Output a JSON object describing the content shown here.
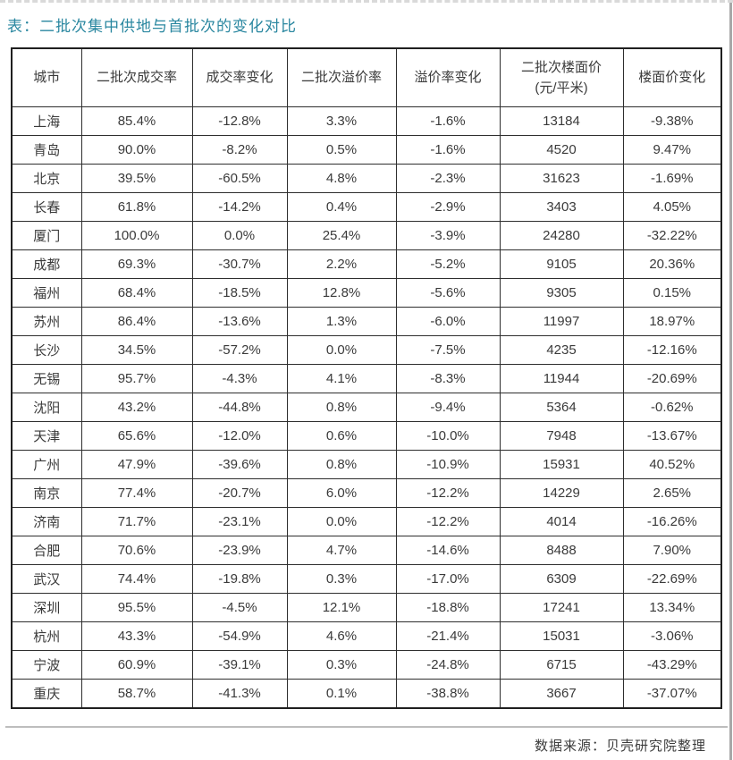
{
  "page": {
    "title": "表：二批次集中供地与首批次的变化对比",
    "source_note": "数据来源：贝壳研究院整理"
  },
  "colors": {
    "title_teal": "#2a87a0",
    "cell_text": "#3a3a3a",
    "table_border": "#2e2e2e",
    "divider_gray": "#bdbdbd"
  },
  "chart_data": {
    "type": "table",
    "title": "表：二批次集中供地与首批次的变化对比",
    "columns": [
      {
        "label": "城市",
        "sub": ""
      },
      {
        "label": "二批次成交率",
        "sub": ""
      },
      {
        "label": "成交率变化",
        "sub": ""
      },
      {
        "label": "二批次溢价率",
        "sub": ""
      },
      {
        "label": "溢价率变化",
        "sub": ""
      },
      {
        "label": "二批次楼面价",
        "sub": "(元/平米)"
      },
      {
        "label": "楼面价变化",
        "sub": ""
      }
    ],
    "rows": [
      [
        "上海",
        "85.4%",
        "-12.8%",
        "3.3%",
        "-1.6%",
        "13184",
        "-9.38%"
      ],
      [
        "青岛",
        "90.0%",
        "-8.2%",
        "0.5%",
        "-1.6%",
        "4520",
        "9.47%"
      ],
      [
        "北京",
        "39.5%",
        "-60.5%",
        "4.8%",
        "-2.3%",
        "31623",
        "-1.69%"
      ],
      [
        "长春",
        "61.8%",
        "-14.2%",
        "0.4%",
        "-2.9%",
        "3403",
        "4.05%"
      ],
      [
        "厦门",
        "100.0%",
        "0.0%",
        "25.4%",
        "-3.9%",
        "24280",
        "-32.22%"
      ],
      [
        "成都",
        "69.3%",
        "-30.7%",
        "2.2%",
        "-5.2%",
        "9105",
        "20.36%"
      ],
      [
        "福州",
        "68.4%",
        "-18.5%",
        "12.8%",
        "-5.6%",
        "9305",
        "0.15%"
      ],
      [
        "苏州",
        "86.4%",
        "-13.6%",
        "1.3%",
        "-6.0%",
        "11997",
        "18.97%"
      ],
      [
        "长沙",
        "34.5%",
        "-57.2%",
        "0.0%",
        "-7.5%",
        "4235",
        "-12.16%"
      ],
      [
        "无锡",
        "95.7%",
        "-4.3%",
        "4.1%",
        "-8.3%",
        "11944",
        "-20.69%"
      ],
      [
        "沈阳",
        "43.2%",
        "-44.8%",
        "0.8%",
        "-9.4%",
        "5364",
        "-0.62%"
      ],
      [
        "天津",
        "65.6%",
        "-12.0%",
        "0.6%",
        "-10.0%",
        "7948",
        "-13.67%"
      ],
      [
        "广州",
        "47.9%",
        "-39.6%",
        "0.8%",
        "-10.9%",
        "15931",
        "40.52%"
      ],
      [
        "南京",
        "77.4%",
        "-20.7%",
        "6.0%",
        "-12.2%",
        "14229",
        "2.65%"
      ],
      [
        "济南",
        "71.7%",
        "-23.1%",
        "0.0%",
        "-12.2%",
        "4014",
        "-16.26%"
      ],
      [
        "合肥",
        "70.6%",
        "-23.9%",
        "4.7%",
        "-14.6%",
        "8488",
        "7.90%"
      ],
      [
        "武汉",
        "74.4%",
        "-19.8%",
        "0.3%",
        "-17.0%",
        "6309",
        "-22.69%"
      ],
      [
        "深圳",
        "95.5%",
        "-4.5%",
        "12.1%",
        "-18.8%",
        "17241",
        "13.34%"
      ],
      [
        "杭州",
        "43.3%",
        "-54.9%",
        "4.6%",
        "-21.4%",
        "15031",
        "-3.06%"
      ],
      [
        "宁波",
        "60.9%",
        "-39.1%",
        "0.3%",
        "-24.8%",
        "6715",
        "-43.29%"
      ],
      [
        "重庆",
        "58.7%",
        "-41.3%",
        "0.1%",
        "-38.8%",
        "3667",
        "-37.07%"
      ]
    ],
    "source": "数据来源：贝壳研究院整理"
  }
}
